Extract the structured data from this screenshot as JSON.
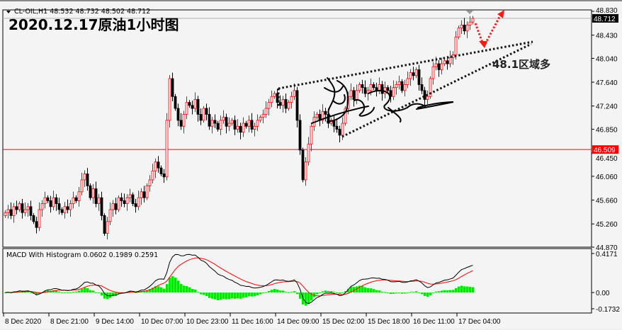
{
  "header": {
    "symbol_line": "CL-OIL,H1  48.532 48.732 48.502 48.712",
    "title": "2020.12.17原油1小时图"
  },
  "annotation": {
    "text": "48.1区域多"
  },
  "colors": {
    "bull": "#ff0000",
    "bear": "#000000",
    "histogram": "#00e600",
    "signal": "#ff0000",
    "macd": "#000000",
    "bid_line": "#ff0000",
    "ask_line": "#b0b0b0"
  },
  "chart_data": {
    "type": "candlestick",
    "price_axis": {
      "ticks": [
        "48.830",
        "48.430",
        "48.040",
        "47.640",
        "47.240",
        "46.850",
        "46.450",
        "46.060",
        "45.660",
        "45.260",
        "44.870"
      ],
      "range": [
        44.87,
        48.83
      ]
    },
    "current_price": "48.712",
    "marked_price": "46.509",
    "time_labels": [
      "8 Dec 2020",
      "8 Dec 21:00",
      "9 Dec 14:00",
      "10 Dec 07:00",
      "10 Dec 23:00",
      "11 Dec 16:00",
      "14 Dec 09:00",
      "15 Dec 02:00",
      "15 Dec 18:00",
      "16 Dec 11:00",
      "17 Dec 04:00"
    ],
    "closes": [
      45.45,
      45.5,
      45.4,
      45.55,
      45.5,
      45.6,
      45.45,
      45.5,
      45.55,
      45.4,
      45.3,
      45.2,
      45.5,
      45.6,
      45.7,
      45.65,
      45.55,
      45.7,
      45.6,
      45.5,
      45.45,
      45.55,
      45.5,
      45.6,
      45.7,
      45.65,
      45.8,
      46.0,
      46.1,
      45.9,
      45.7,
      45.85,
      45.6,
      45.7,
      45.4,
      45.1,
      45.3,
      45.5,
      45.6,
      45.5,
      45.7,
      45.65,
      45.6,
      45.7,
      45.75,
      45.6,
      45.55,
      45.7,
      45.8,
      45.7,
      45.9,
      46.0,
      46.15,
      46.3,
      46.2,
      46.1,
      46.05,
      47.0,
      47.7,
      47.4,
      47.2,
      47.0,
      46.9,
      47.1,
      47.3,
      47.25,
      47.2,
      47.35,
      47.1,
      47.0,
      47.2,
      47.1,
      46.9,
      47.0,
      46.95,
      46.85,
      47.0,
      47.05,
      46.9,
      46.95,
      47.0,
      46.85,
      46.9,
      46.8,
      46.95,
      46.9,
      47.0,
      46.85,
      46.9,
      47.0,
      47.05,
      47.1,
      47.2,
      47.3,
      47.4,
      47.45,
      47.3,
      47.25,
      47.35,
      47.2,
      47.3,
      47.4,
      47.5,
      47.0,
      46.5,
      46.0,
      46.3,
      46.6,
      46.9,
      47.05,
      47.1,
      47.0,
      47.15,
      47.1,
      46.95,
      47.0,
      46.9,
      46.85,
      46.75,
      46.95,
      47.2,
      47.4,
      47.5,
      47.35,
      47.5,
      47.6,
      47.55,
      47.45,
      47.5,
      47.6,
      47.55,
      47.5,
      47.6,
      47.45,
      47.55,
      47.5,
      47.4,
      47.55,
      47.6,
      47.65,
      47.5,
      47.6,
      47.7,
      47.8,
      47.75,
      47.85,
      47.6,
      47.5,
      47.35,
      47.4,
      47.7,
      47.9,
      47.95,
      47.85,
      47.95,
      48.0,
      47.95,
      48.05,
      48.1,
      48.4,
      48.55,
      48.6,
      48.5,
      48.6,
      48.65,
      48.712
    ],
    "macd": {
      "label": "MACD With Histogram 0.0602 0.1989 0.2591",
      "ticks": [
        "0.4171",
        "0.00",
        "-0.1732"
      ],
      "range": [
        -0.1732,
        0.4171
      ]
    }
  }
}
